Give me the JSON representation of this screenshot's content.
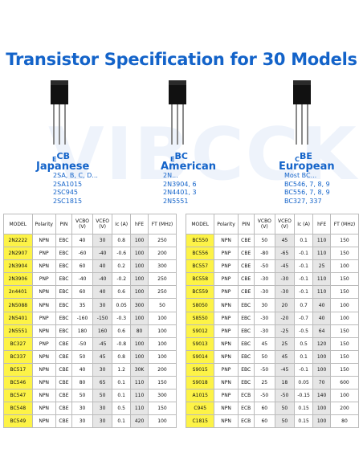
{
  "title": "Transistor Specification for 30 Models",
  "watermark": "VIBCCK",
  "packages": [
    {
      "pins": [
        "E",
        "C",
        "B"
      ],
      "region": "Japanese",
      "models": [
        "2SA, B, C, D...",
        "2SA1015",
        "2SC945",
        "2SC1815"
      ]
    },
    {
      "pins": [
        "E",
        "B",
        "C"
      ],
      "region": "American",
      "models": [
        "2N...",
        "2N3904, 6",
        "2N4401, 3",
        "2N5551"
      ]
    },
    {
      "pins": [
        "C",
        "B",
        "E"
      ],
      "region": "European",
      "models": [
        "Most BC...",
        "BC546, 7, 8, 9",
        "BC556, 7, 8, 9",
        "BC327, 337"
      ]
    }
  ],
  "headers": [
    "MODEL",
    "Polarity",
    "PIN",
    "VCBO (V)",
    "VCEO (V)",
    "Ic (A)",
    "hFE",
    "FT (MHz)"
  ],
  "left_rows": [
    [
      "2N2222",
      "NPN",
      "EBC",
      "40",
      "30",
      "0.8",
      "100",
      "250"
    ],
    [
      "2N2907",
      "PNP",
      "EBC",
      "-60",
      "-40",
      "-0.6",
      "100",
      "200"
    ],
    [
      "2N3904",
      "NPN",
      "EBC",
      "60",
      "40",
      "0.2",
      "100",
      "300"
    ],
    [
      "2N3906",
      "PNP",
      "EBC",
      "-40",
      "-40",
      "-0.2",
      "100",
      "250"
    ],
    [
      "2n4401",
      "NPN",
      "EBC",
      "60",
      "40",
      "0.6",
      "100",
      "250"
    ],
    [
      "2N5088",
      "NPN",
      "EBC",
      "35",
      "30",
      "0.05",
      "300",
      "50"
    ],
    [
      "2N5401",
      "PNP",
      "EBC",
      "-160",
      "-150",
      "-0.3",
      "100",
      "100"
    ],
    [
      "2N5551",
      "NPN",
      "EBC",
      "180",
      "160",
      "0.6",
      "80",
      "100"
    ],
    [
      "BC327",
      "PNP",
      "CBE",
      "-50",
      "-45",
      "-0.8",
      "100",
      "100"
    ],
    [
      "BC337",
      "NPN",
      "CBE",
      "50",
      "45",
      "0.8",
      "100",
      "100"
    ],
    [
      "BC517",
      "NPN",
      "CBE",
      "40",
      "30",
      "1.2",
      "30K",
      "200"
    ],
    [
      "BC546",
      "NPN",
      "CBE",
      "80",
      "65",
      "0.1",
      "110",
      "150"
    ],
    [
      "BC547",
      "NPN",
      "CBE",
      "50",
      "50",
      "0.1",
      "110",
      "300"
    ],
    [
      "BC548",
      "NPN",
      "CBE",
      "30",
      "30",
      "0.5",
      "110",
      "150"
    ],
    [
      "BC549",
      "NPN",
      "CBE",
      "30",
      "30",
      "0.1",
      "420",
      "100"
    ]
  ],
  "right_rows": [
    [
      "BC550",
      "NPN",
      "CBE",
      "50",
      "45",
      "0.1",
      "110",
      "150"
    ],
    [
      "BC556",
      "PNP",
      "CBE",
      "-80",
      "-65",
      "-0.1",
      "110",
      "150"
    ],
    [
      "BC557",
      "PNP",
      "CBE",
      "-50",
      "-45",
      "-0.1",
      "25",
      "100"
    ],
    [
      "BC558",
      "PNP",
      "CBE",
      "-30",
      "-30",
      "-0.1",
      "110",
      "150"
    ],
    [
      "BC559",
      "PNP",
      "CBE",
      "-30",
      "-30",
      "-0.1",
      "110",
      "150"
    ],
    [
      "S8050",
      "NPN",
      "EBC",
      "30",
      "20",
      "0.7",
      "40",
      "100"
    ],
    [
      "S8550",
      "PNP",
      "EBC",
      "-30",
      "-20",
      "-0.7",
      "40",
      "100"
    ],
    [
      "S9012",
      "PNP",
      "EBC",
      "-30",
      "-25",
      "-0.5",
      "64",
      "150"
    ],
    [
      "S9013",
      "NPN",
      "EBC",
      "45",
      "25",
      "0.5",
      "120",
      "150"
    ],
    [
      "S9014",
      "NPN",
      "EBC",
      "50",
      "45",
      "0.1",
      "100",
      "150"
    ],
    [
      "S9015",
      "PNP",
      "EBC",
      "-50",
      "-45",
      "-0.1",
      "100",
      "150"
    ],
    [
      "S9018",
      "NPN",
      "EBC",
      "25",
      "18",
      "0.05",
      "70",
      "600"
    ],
    [
      "A1015",
      "PNP",
      "ECB",
      "-50",
      "-50",
      "-0.15",
      "140",
      "100"
    ],
    [
      "C945",
      "NPN",
      "ECB",
      "60",
      "50",
      "0.15",
      "100",
      "200"
    ],
    [
      "C1815",
      "NPN",
      "ECB",
      "60",
      "50",
      "0.15",
      "100",
      "80"
    ]
  ]
}
